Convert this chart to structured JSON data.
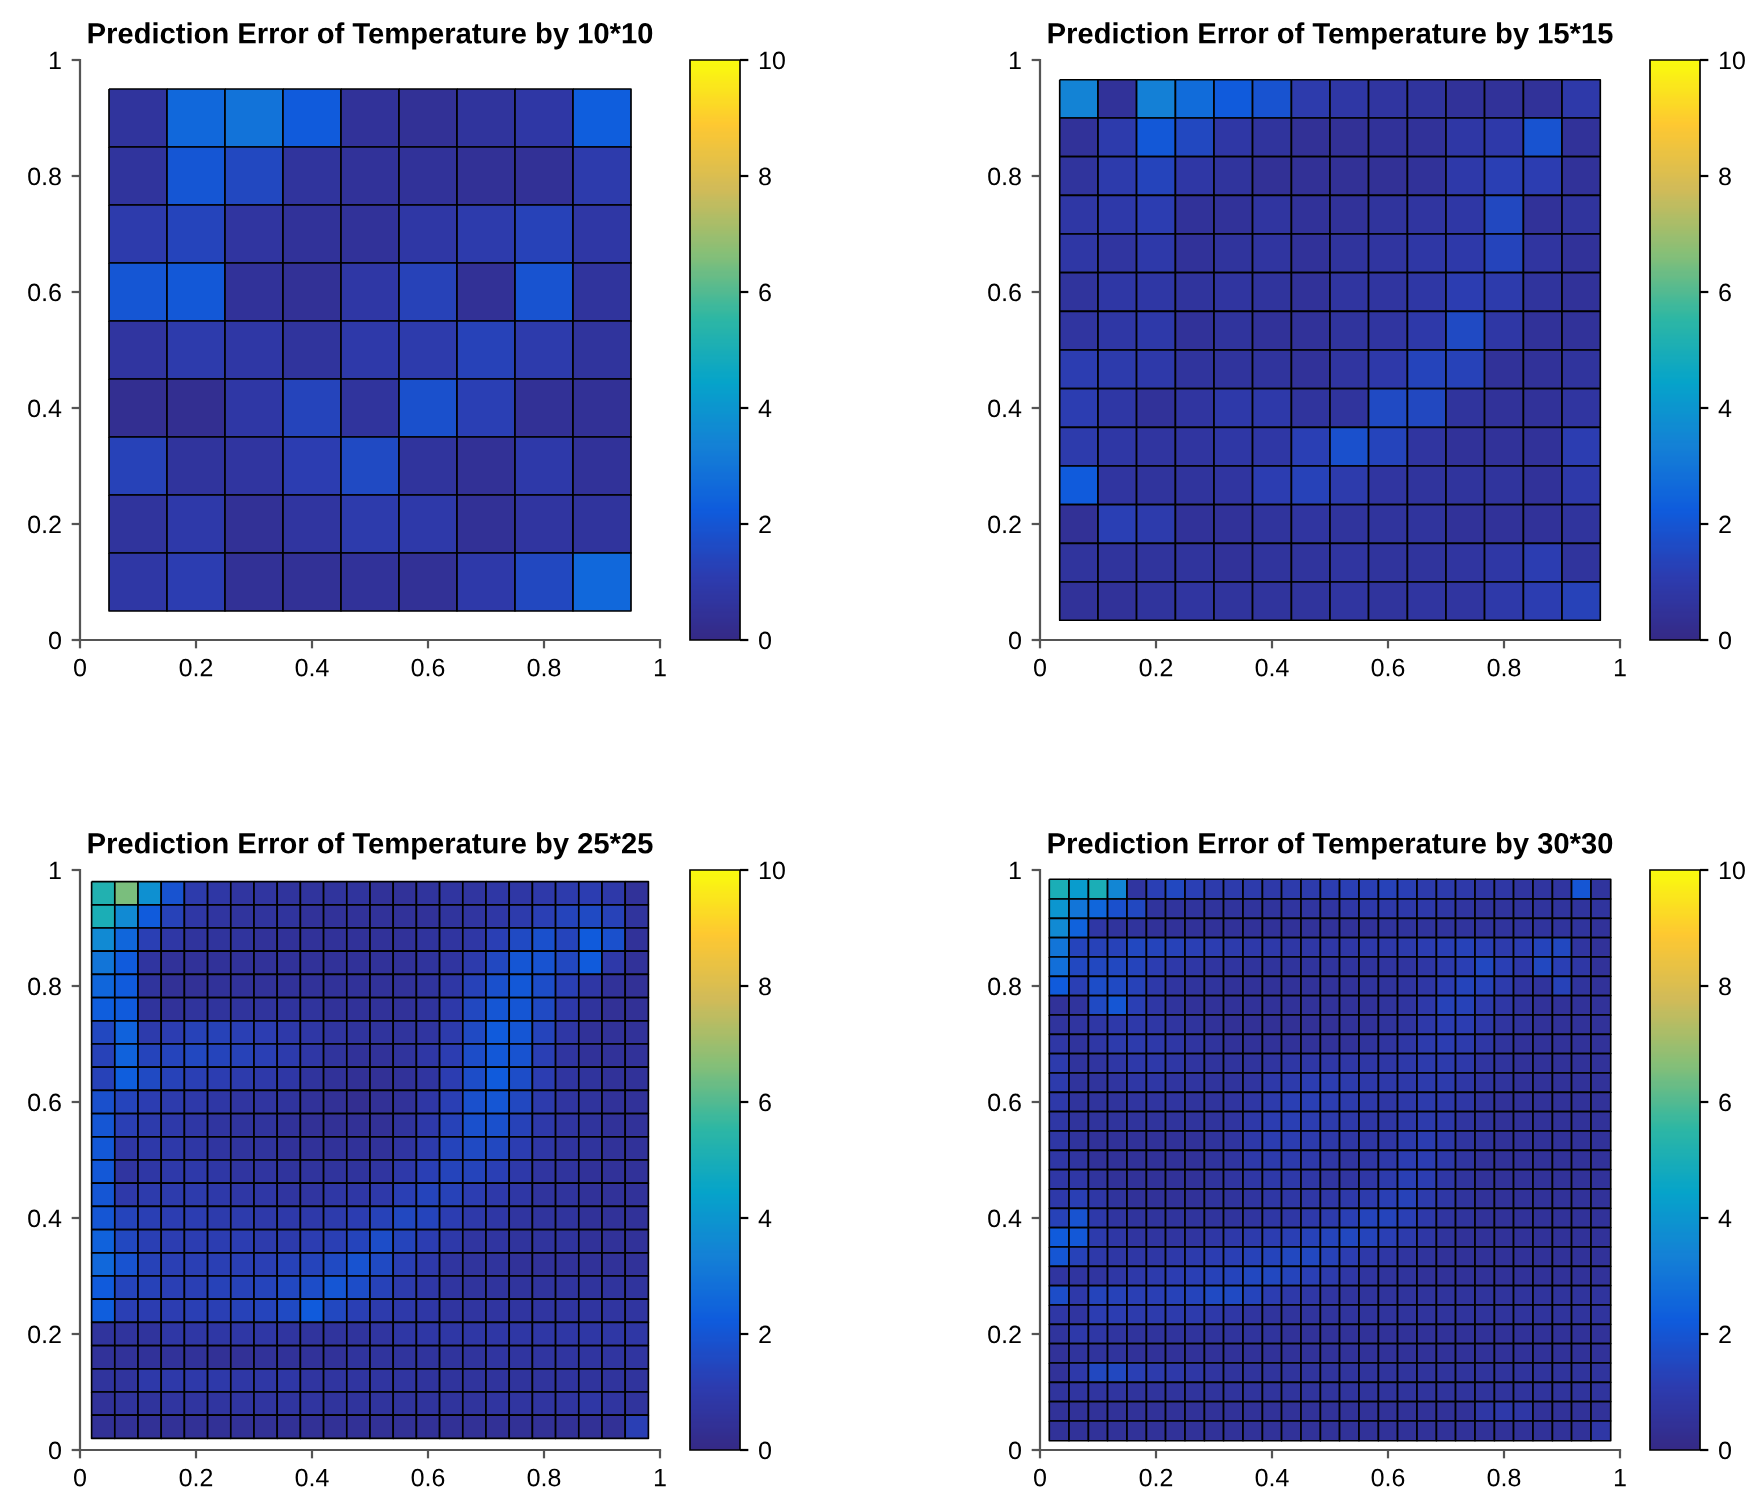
{
  "chart_data": [
    {
      "type": "heatmap",
      "title": "Prediction Error of Temperature by 10*10",
      "x": [
        0.1,
        0.2,
        0.3,
        0.4,
        0.5,
        0.6,
        0.7,
        0.8,
        0.9
      ],
      "y": [
        0.9,
        0.8,
        0.7,
        0.6,
        0.5,
        0.4,
        0.3,
        0.2,
        0.1
      ],
      "xlim": [
        0,
        1
      ],
      "ylim": [
        0,
        1
      ],
      "xticks": [
        0,
        0.2,
        0.4,
        0.6,
        0.8,
        1
      ],
      "yticks": [
        0,
        0.2,
        0.4,
        0.6,
        0.8,
        1
      ],
      "clim": [
        0,
        10
      ],
      "cticks": [
        0,
        2,
        4,
        6,
        8,
        10
      ],
      "cells": [
        [
          0.6,
          2.6,
          2.9,
          2.2,
          0.5,
          0.4,
          0.6,
          0.8,
          2.3
        ],
        [
          0.6,
          2.0,
          1.5,
          0.6,
          0.5,
          0.5,
          0.4,
          0.4,
          1.0
        ],
        [
          1.0,
          1.4,
          0.7,
          0.5,
          0.5,
          0.8,
          1.0,
          1.3,
          0.8
        ],
        [
          2.0,
          2.1,
          0.5,
          0.4,
          0.8,
          1.3,
          0.4,
          1.9,
          0.6
        ],
        [
          0.7,
          1.0,
          0.8,
          0.6,
          0.9,
          1.0,
          1.3,
          1.0,
          0.6
        ],
        [
          0.3,
          0.3,
          0.8,
          1.4,
          0.6,
          1.8,
          1.2,
          0.4,
          0.4
        ],
        [
          1.3,
          0.6,
          0.7,
          1.1,
          1.6,
          0.6,
          0.4,
          0.9,
          0.5
        ],
        [
          0.6,
          0.9,
          0.4,
          0.7,
          1.0,
          0.9,
          0.4,
          0.7,
          0.6
        ],
        [
          0.8,
          1.1,
          0.4,
          0.4,
          0.5,
          0.4,
          0.9,
          1.5,
          2.6
        ]
      ]
    },
    {
      "type": "heatmap",
      "title": "Prediction Error of Temperature by 15*15",
      "x": [
        0.067,
        0.133,
        0.2,
        0.267,
        0.333,
        0.4,
        0.467,
        0.533,
        0.6,
        0.667,
        0.733,
        0.8,
        0.867,
        0.933
      ],
      "y": [
        0.933,
        0.867,
        0.8,
        0.733,
        0.667,
        0.6,
        0.533,
        0.467,
        0.4,
        0.333,
        0.267,
        0.2,
        0.133,
        0.067
      ],
      "xlim": [
        0,
        1
      ],
      "ylim": [
        0,
        1
      ],
      "xticks": [
        0,
        0.2,
        0.4,
        0.6,
        0.8,
        1
      ],
      "yticks": [
        0,
        0.2,
        0.4,
        0.6,
        0.8,
        1
      ],
      "clim": [
        0,
        10
      ],
      "cticks": [
        0,
        2,
        4,
        6,
        8,
        10
      ],
      "cells": [
        [
          3.4,
          0.5,
          3.3,
          2.7,
          2.2,
          1.9,
          1.0,
          0.8,
          0.7,
          0.6,
          0.5,
          0.5,
          0.5,
          0.9
        ],
        [
          0.5,
          1.0,
          2.1,
          1.5,
          0.8,
          0.6,
          0.4,
          0.4,
          0.5,
          0.5,
          0.8,
          0.9,
          1.9,
          0.5
        ],
        [
          0.6,
          1.0,
          1.4,
          0.8,
          0.6,
          0.4,
          0.4,
          0.4,
          0.4,
          0.5,
          0.9,
          1.2,
          1.1,
          0.5
        ],
        [
          0.8,
          0.9,
          1.1,
          0.5,
          0.5,
          0.7,
          0.5,
          0.5,
          0.6,
          0.7,
          0.8,
          1.5,
          0.5,
          0.6
        ],
        [
          0.8,
          0.7,
          0.9,
          0.5,
          0.6,
          0.7,
          0.5,
          0.6,
          0.7,
          0.8,
          0.9,
          1.4,
          0.7,
          0.5
        ],
        [
          0.6,
          0.8,
          0.8,
          0.6,
          0.7,
          0.6,
          0.5,
          0.7,
          0.7,
          0.8,
          1.1,
          1.0,
          0.6,
          0.5
        ],
        [
          0.7,
          0.8,
          0.9,
          0.5,
          0.6,
          0.5,
          0.5,
          0.6,
          0.7,
          0.9,
          1.6,
          0.8,
          0.5,
          0.5
        ],
        [
          1.1,
          1.0,
          0.9,
          0.6,
          0.6,
          0.6,
          0.5,
          0.7,
          0.9,
          1.4,
          1.3,
          0.5,
          0.5,
          0.6
        ],
        [
          1.1,
          0.8,
          0.5,
          0.7,
          0.9,
          0.9,
          0.6,
          0.6,
          1.6,
          1.5,
          0.6,
          0.5,
          0.5,
          0.7
        ],
        [
          1.0,
          0.8,
          0.7,
          0.7,
          0.8,
          0.8,
          1.2,
          1.8,
          1.4,
          0.7,
          0.5,
          0.5,
          0.5,
          1.1
        ],
        [
          2.2,
          0.7,
          0.6,
          0.6,
          0.7,
          1.1,
          1.3,
          1.0,
          0.7,
          0.6,
          0.6,
          0.6,
          0.5,
          0.9
        ],
        [
          0.4,
          1.2,
          1.0,
          0.5,
          0.5,
          0.6,
          0.7,
          0.6,
          0.6,
          0.6,
          0.5,
          0.5,
          0.5,
          0.6
        ],
        [
          0.6,
          0.6,
          0.6,
          0.6,
          0.5,
          0.6,
          0.6,
          0.7,
          0.6,
          0.6,
          0.7,
          0.8,
          1.1,
          0.6
        ],
        [
          0.5,
          0.5,
          0.6,
          0.7,
          0.6,
          0.6,
          0.6,
          0.7,
          0.6,
          0.7,
          0.7,
          0.9,
          1.1,
          1.3
        ]
      ]
    },
    {
      "type": "heatmap",
      "title": "Prediction Error of Temperature by 25*25",
      "x": [
        0.04,
        0.08,
        0.12,
        0.16,
        0.2,
        0.24,
        0.28,
        0.32,
        0.36,
        0.4,
        0.44,
        0.48,
        0.52,
        0.56,
        0.6,
        0.64,
        0.68,
        0.72,
        0.76,
        0.8,
        0.84,
        0.88,
        0.92,
        0.96
      ],
      "y": [
        0.96,
        0.92,
        0.88,
        0.84,
        0.8,
        0.76,
        0.72,
        0.68,
        0.64,
        0.6,
        0.56,
        0.52,
        0.48,
        0.44,
        0.4,
        0.36,
        0.32,
        0.28,
        0.24,
        0.2,
        0.16,
        0.12,
        0.08,
        0.04
      ],
      "xlim": [
        0,
        1
      ],
      "ylim": [
        0,
        1
      ],
      "xticks": [
        0,
        0.2,
        0.4,
        0.6,
        0.8,
        1
      ],
      "yticks": [
        0,
        0.2,
        0.4,
        0.6,
        0.8,
        1
      ],
      "clim": [
        0,
        10
      ],
      "cticks": [
        0,
        2,
        4,
        6,
        8,
        10
      ],
      "cells": [
        [
          5.2,
          6.5,
          3.8,
          1.9,
          1.0,
          0.8,
          0.7,
          0.7,
          0.6,
          0.6,
          0.6,
          0.6,
          0.5,
          0.5,
          0.6,
          0.7,
          0.7,
          0.8,
          0.8,
          0.9,
          1.0,
          1.1,
          0.9,
          0.5
        ],
        [
          5.0,
          3.6,
          2.2,
          1.3,
          0.8,
          0.7,
          0.6,
          0.6,
          0.6,
          0.5,
          0.5,
          0.5,
          0.5,
          0.5,
          0.5,
          0.6,
          0.7,
          0.8,
          1.0,
          1.2,
          1.4,
          1.6,
          1.3,
          0.6
        ],
        [
          3.6,
          2.5,
          1.2,
          0.8,
          0.6,
          0.6,
          0.6,
          0.5,
          0.5,
          0.5,
          0.5,
          0.5,
          0.5,
          0.5,
          0.6,
          0.7,
          0.8,
          1.2,
          1.6,
          1.8,
          1.4,
          2.2,
          1.8,
          0.5
        ],
        [
          3.0,
          2.2,
          0.7,
          0.5,
          0.5,
          0.5,
          0.5,
          0.5,
          0.5,
          0.5,
          0.5,
          0.5,
          0.5,
          0.5,
          0.6,
          0.7,
          1.0,
          1.5,
          2.0,
          1.9,
          1.5,
          2.2,
          0.9,
          0.5
        ],
        [
          2.5,
          2.2,
          0.6,
          0.4,
          0.4,
          0.5,
          0.5,
          0.5,
          0.5,
          0.5,
          0.5,
          0.5,
          0.5,
          0.5,
          0.6,
          0.8,
          1.3,
          1.8,
          2.1,
          1.7,
          1.2,
          0.8,
          0.5,
          0.4
        ],
        [
          2.3,
          2.2,
          0.6,
          0.5,
          0.6,
          0.6,
          0.6,
          0.6,
          0.6,
          0.6,
          0.5,
          0.5,
          0.5,
          0.5,
          0.6,
          0.9,
          1.5,
          2.0,
          2.0,
          1.6,
          0.9,
          0.6,
          0.4,
          0.4
        ],
        [
          1.5,
          2.4,
          1.0,
          1.1,
          1.3,
          1.3,
          1.2,
          1.1,
          0.9,
          0.8,
          0.7,
          0.6,
          0.6,
          0.6,
          0.7,
          1.0,
          1.6,
          2.2,
          2.0,
          1.4,
          0.8,
          0.5,
          0.5,
          0.5
        ],
        [
          1.3,
          2.4,
          1.4,
          1.4,
          1.5,
          1.4,
          1.3,
          1.2,
          1.0,
          0.8,
          0.6,
          0.5,
          0.5,
          0.6,
          0.8,
          1.1,
          1.7,
          2.1,
          1.9,
          1.2,
          0.7,
          0.5,
          0.5,
          0.5
        ],
        [
          1.3,
          2.3,
          1.6,
          1.3,
          1.2,
          1.1,
          1.0,
          0.9,
          0.8,
          0.6,
          0.5,
          0.4,
          0.4,
          0.5,
          0.7,
          1.1,
          1.7,
          2.2,
          1.7,
          1.1,
          0.7,
          0.6,
          0.5,
          0.5
        ],
        [
          1.8,
          1.4,
          1.1,
          1.0,
          0.9,
          0.8,
          0.7,
          0.7,
          0.6,
          0.5,
          0.4,
          0.3,
          0.4,
          0.5,
          0.8,
          1.2,
          1.8,
          2.0,
          1.5,
          1.0,
          0.7,
          0.6,
          0.5,
          0.5
        ],
        [
          2.0,
          1.2,
          1.0,
          0.9,
          0.8,
          0.7,
          0.6,
          0.6,
          0.5,
          0.4,
          0.4,
          0.4,
          0.4,
          0.6,
          0.9,
          1.3,
          1.8,
          1.8,
          1.3,
          0.9,
          0.7,
          0.6,
          0.5,
          0.5
        ],
        [
          2.1,
          0.8,
          0.9,
          0.9,
          0.8,
          0.7,
          0.6,
          0.6,
          0.5,
          0.5,
          0.5,
          0.5,
          0.5,
          0.7,
          1.0,
          1.4,
          1.6,
          1.5,
          1.1,
          0.8,
          0.6,
          0.6,
          0.5,
          0.5
        ],
        [
          2.1,
          0.7,
          0.8,
          0.9,
          0.9,
          0.8,
          0.7,
          0.7,
          0.6,
          0.6,
          0.6,
          0.6,
          0.7,
          0.9,
          1.2,
          1.4,
          1.4,
          1.2,
          0.9,
          0.7,
          0.6,
          0.5,
          0.5,
          0.5
        ],
        [
          2.0,
          0.9,
          1.0,
          1.0,
          1.0,
          0.9,
          0.8,
          0.8,
          0.7,
          0.7,
          0.8,
          0.8,
          0.9,
          1.2,
          1.4,
          1.3,
          1.1,
          0.9,
          0.8,
          0.6,
          0.6,
          0.5,
          0.5,
          0.5
        ],
        [
          2.0,
          1.4,
          1.2,
          1.1,
          1.1,
          1.0,
          1.0,
          0.9,
          0.9,
          0.9,
          1.0,
          1.1,
          1.3,
          1.5,
          1.4,
          1.1,
          0.9,
          0.8,
          0.7,
          0.6,
          0.6,
          0.5,
          0.5,
          0.5
        ],
        [
          2.4,
          1.5,
          1.2,
          1.1,
          1.1,
          1.1,
          1.1,
          1.0,
          1.0,
          1.1,
          1.2,
          1.4,
          1.7,
          1.4,
          1.1,
          0.9,
          0.7,
          0.7,
          0.6,
          0.6,
          0.6,
          0.5,
          0.5,
          0.5
        ],
        [
          2.6,
          1.9,
          1.3,
          1.2,
          1.2,
          1.2,
          1.2,
          1.2,
          1.3,
          1.4,
          1.6,
          1.9,
          1.6,
          1.2,
          0.9,
          0.7,
          0.6,
          0.6,
          0.5,
          0.5,
          0.5,
          0.5,
          0.5,
          0.5
        ],
        [
          2.2,
          1.4,
          1.3,
          1.2,
          1.2,
          1.3,
          1.3,
          1.4,
          1.5,
          1.7,
          2.0,
          1.7,
          1.3,
          1.0,
          0.8,
          0.7,
          0.6,
          0.6,
          0.6,
          0.6,
          0.6,
          0.6,
          0.6,
          0.6
        ],
        [
          2.3,
          1.2,
          1.1,
          1.1,
          1.2,
          1.2,
          1.3,
          1.4,
          1.6,
          2.2,
          1.5,
          1.2,
          1.0,
          0.9,
          0.8,
          0.7,
          0.7,
          0.7,
          0.7,
          0.7,
          0.7,
          0.7,
          0.7,
          0.7
        ],
        [
          0.6,
          0.6,
          0.6,
          0.8,
          0.8,
          0.8,
          0.8,
          0.8,
          0.7,
          0.6,
          0.6,
          0.6,
          0.7,
          0.8,
          0.8,
          0.8,
          0.8,
          0.8,
          0.8,
          0.8,
          0.8,
          0.8,
          0.8,
          0.8
        ],
        [
          0.5,
          0.5,
          0.5,
          0.5,
          0.5,
          0.4,
          0.4,
          0.5,
          0.5,
          0.5,
          0.5,
          0.6,
          0.6,
          0.6,
          0.6,
          0.6,
          0.6,
          0.7,
          0.7,
          0.7,
          0.7,
          0.7,
          0.7,
          0.7
        ],
        [
          0.6,
          0.6,
          0.9,
          0.9,
          0.9,
          0.9,
          0.8,
          0.8,
          0.8,
          0.7,
          0.7,
          0.7,
          0.7,
          0.7,
          0.6,
          0.6,
          0.6,
          0.6,
          0.6,
          0.6,
          0.6,
          0.6,
          0.6,
          0.6
        ],
        [
          0.5,
          0.6,
          0.6,
          0.7,
          0.7,
          0.7,
          0.7,
          0.7,
          0.7,
          0.7,
          0.6,
          0.6,
          0.6,
          0.6,
          0.6,
          0.6,
          0.6,
          0.7,
          0.7,
          0.7,
          0.7,
          0.8,
          0.7,
          0.6
        ],
        [
          0.4,
          0.4,
          0.4,
          0.4,
          0.4,
          0.4,
          0.4,
          0.4,
          0.4,
          0.4,
          0.4,
          0.4,
          0.4,
          0.4,
          0.4,
          0.4,
          0.4,
          0.4,
          0.4,
          0.4,
          0.4,
          0.4,
          0.4,
          1.2
        ]
      ]
    },
    {
      "type": "heatmap",
      "title": "Prediction Error of Temperature by 30*30",
      "x": [
        0.033,
        0.067,
        0.1,
        0.133,
        0.167,
        0.2,
        0.233,
        0.267,
        0.3,
        0.333,
        0.367,
        0.4,
        0.433,
        0.467,
        0.5,
        0.533,
        0.567,
        0.6,
        0.633,
        0.667,
        0.7,
        0.733,
        0.767,
        0.8,
        0.833,
        0.867,
        0.9,
        0.933,
        0.967
      ],
      "y": [
        0.967,
        0.933,
        0.9,
        0.867,
        0.833,
        0.8,
        0.767,
        0.733,
        0.7,
        0.667,
        0.633,
        0.6,
        0.567,
        0.533,
        0.5,
        0.467,
        0.433,
        0.4,
        0.367,
        0.333,
        0.3,
        0.267,
        0.233,
        0.2,
        0.167,
        0.133,
        0.1,
        0.067,
        0.033
      ],
      "xlim": [
        0,
        1
      ],
      "ylim": [
        0,
        1
      ],
      "xticks": [
        0,
        0.2,
        0.4,
        0.6,
        0.8,
        1
      ],
      "yticks": [
        0,
        0.2,
        0.4,
        0.6,
        0.8,
        1
      ],
      "clim": [
        0,
        10
      ],
      "cticks": [
        0,
        2,
        4,
        6,
        8,
        10
      ],
      "cells": [
        [
          5.0,
          4.2,
          5.0,
          3.5,
          0.7,
          1.2,
          1.5,
          1.2,
          1.0,
          1.0,
          1.0,
          0.9,
          1.0,
          1.0,
          1.1,
          1.2,
          1.2,
          1.3,
          1.2,
          1.0,
          1.0,
          0.9,
          0.8,
          0.8,
          0.7,
          0.7,
          0.7,
          2.0,
          0.6
        ],
        [
          4.0,
          3.0,
          2.5,
          1.8,
          1.5,
          0.6,
          0.6,
          0.6,
          0.6,
          0.6,
          0.6,
          0.6,
          0.7,
          0.7,
          0.7,
          0.8,
          0.9,
          0.9,
          0.9,
          0.9,
          0.8,
          0.7,
          0.6,
          0.6,
          0.6,
          0.6,
          0.6,
          0.6,
          0.6
        ],
        [
          3.6,
          2.4,
          0.8,
          0.6,
          0.6,
          0.5,
          0.5,
          0.5,
          0.5,
          0.5,
          0.5,
          0.5,
          0.5,
          0.5,
          0.5,
          0.5,
          0.5,
          0.6,
          0.6,
          0.6,
          0.6,
          0.6,
          0.6,
          0.6,
          0.6,
          0.6,
          0.6,
          0.6,
          0.5
        ],
        [
          3.0,
          1.4,
          1.3,
          1.3,
          1.5,
          1.4,
          1.3,
          1.2,
          1.1,
          1.0,
          0.9,
          0.9,
          0.8,
          0.8,
          0.8,
          0.8,
          0.9,
          0.9,
          1.0,
          1.1,
          1.2,
          1.3,
          1.2,
          1.0,
          1.1,
          1.4,
          1.5,
          0.7,
          0.5
        ],
        [
          2.8,
          1.5,
          1.5,
          1.5,
          1.4,
          1.1,
          0.9,
          0.8,
          0.7,
          0.7,
          0.6,
          0.6,
          0.6,
          0.6,
          0.6,
          0.6,
          0.6,
          0.7,
          0.7,
          0.8,
          1.0,
          1.2,
          1.5,
          1.2,
          0.9,
          1.5,
          1.2,
          0.8,
          0.5
        ],
        [
          2.2,
          1.2,
          1.7,
          1.6,
          1.3,
          0.9,
          0.7,
          0.6,
          0.6,
          0.5,
          0.5,
          0.5,
          0.5,
          0.5,
          0.5,
          0.5,
          0.6,
          0.6,
          0.7,
          0.8,
          1.1,
          1.4,
          1.3,
          1.0,
          0.7,
          0.6,
          1.3,
          0.6,
          0.5
        ],
        [
          0.5,
          0.6,
          1.6,
          2.0,
          1.2,
          0.8,
          0.6,
          0.5,
          0.5,
          0.5,
          0.5,
          0.5,
          0.5,
          0.5,
          0.5,
          0.5,
          0.5,
          0.6,
          0.7,
          0.9,
          1.3,
          1.3,
          1.0,
          0.8,
          0.6,
          0.5,
          0.5,
          0.5,
          0.5
        ],
        [
          0.6,
          0.7,
          0.8,
          0.9,
          0.9,
          0.8,
          0.7,
          0.6,
          0.5,
          0.4,
          0.4,
          0.4,
          0.4,
          0.4,
          0.4,
          0.5,
          0.5,
          0.6,
          0.7,
          0.9,
          1.1,
          1.1,
          0.9,
          0.7,
          0.6,
          0.5,
          0.5,
          0.5,
          0.5
        ],
        [
          0.8,
          0.6,
          0.8,
          1.0,
          1.0,
          0.9,
          0.8,
          0.7,
          0.6,
          0.5,
          0.5,
          0.5,
          0.5,
          0.5,
          0.5,
          0.5,
          0.6,
          0.7,
          0.8,
          1.0,
          1.1,
          1.0,
          0.8,
          0.6,
          0.5,
          0.5,
          0.5,
          0.5,
          0.5
        ],
        [
          1.0,
          0.6,
          0.7,
          0.8,
          0.9,
          0.9,
          0.8,
          0.7,
          0.6,
          0.6,
          0.6,
          0.7,
          0.8,
          0.8,
          0.8,
          0.8,
          0.8,
          0.8,
          0.9,
          1.0,
          1.0,
          0.9,
          0.7,
          0.6,
          0.5,
          0.5,
          0.5,
          0.5,
          0.5
        ],
        [
          1.0,
          0.6,
          0.6,
          0.7,
          0.8,
          0.8,
          0.7,
          0.7,
          0.6,
          0.6,
          0.7,
          0.9,
          1.0,
          1.1,
          1.1,
          1.0,
          0.9,
          0.9,
          0.9,
          1.0,
          1.0,
          0.8,
          0.7,
          0.6,
          0.5,
          0.5,
          0.5,
          0.5,
          0.5
        ],
        [
          0.9,
          0.6,
          0.6,
          0.6,
          0.7,
          0.7,
          0.7,
          0.6,
          0.6,
          0.7,
          0.8,
          1.0,
          1.2,
          1.2,
          1.1,
          1.0,
          0.9,
          0.8,
          0.9,
          1.0,
          0.9,
          0.8,
          0.6,
          0.5,
          0.5,
          0.5,
          0.5,
          0.5,
          0.5
        ],
        [
          0.8,
          0.6,
          0.6,
          0.6,
          0.6,
          0.6,
          0.6,
          0.6,
          0.6,
          0.7,
          0.9,
          1.1,
          1.2,
          1.1,
          1.0,
          0.9,
          0.8,
          0.8,
          0.9,
          1.0,
          0.9,
          0.7,
          0.6,
          0.5,
          0.5,
          0.5,
          0.5,
          0.5,
          0.5
        ],
        [
          0.8,
          0.6,
          0.5,
          0.5,
          0.5,
          0.5,
          0.5,
          0.5,
          0.6,
          0.7,
          0.9,
          1.1,
          1.1,
          1.0,
          0.9,
          0.8,
          0.8,
          0.8,
          1.0,
          1.1,
          0.9,
          0.7,
          0.6,
          0.5,
          0.5,
          0.5,
          0.5,
          0.5,
          0.5
        ],
        [
          0.8,
          0.7,
          0.5,
          0.5,
          0.5,
          0.5,
          0.5,
          0.5,
          0.6,
          0.7,
          0.9,
          1.0,
          1.0,
          0.9,
          0.8,
          0.7,
          0.8,
          0.9,
          1.1,
          1.1,
          0.9,
          0.7,
          0.5,
          0.5,
          0.5,
          0.5,
          0.5,
          0.5,
          0.5
        ],
        [
          0.8,
          0.8,
          0.6,
          0.5,
          0.5,
          0.5,
          0.5,
          0.5,
          0.6,
          0.7,
          0.8,
          0.9,
          0.9,
          0.8,
          0.7,
          0.7,
          0.8,
          1.0,
          1.2,
          1.1,
          0.8,
          0.6,
          0.5,
          0.5,
          0.5,
          0.5,
          0.5,
          0.5,
          0.5
        ],
        [
          0.9,
          1.2,
          0.8,
          0.6,
          0.5,
          0.5,
          0.5,
          0.5,
          0.6,
          0.6,
          0.7,
          0.8,
          0.8,
          0.8,
          0.8,
          0.9,
          1.0,
          1.2,
          1.3,
          1.0,
          0.8,
          0.6,
          0.5,
          0.5,
          0.5,
          0.5,
          0.5,
          0.5,
          0.5
        ],
        [
          1.3,
          1.9,
          0.9,
          0.7,
          0.6,
          0.6,
          0.6,
          0.6,
          0.6,
          0.6,
          0.7,
          0.8,
          0.8,
          0.9,
          1.0,
          1.2,
          1.4,
          1.4,
          1.2,
          0.9,
          0.7,
          0.6,
          0.5,
          0.5,
          0.5,
          0.5,
          0.5,
          0.5,
          0.5
        ],
        [
          2.2,
          2.1,
          1.0,
          0.8,
          0.7,
          0.7,
          0.7,
          0.7,
          0.8,
          0.9,
          1.0,
          1.1,
          1.2,
          1.3,
          1.4,
          1.5,
          1.4,
          1.2,
          1.0,
          0.8,
          0.6,
          0.5,
          0.5,
          0.5,
          0.5,
          0.5,
          0.5,
          0.5,
          0.5
        ],
        [
          2.0,
          1.3,
          0.9,
          0.8,
          0.8,
          0.8,
          0.9,
          1.0,
          1.1,
          1.2,
          1.3,
          1.4,
          1.5,
          1.5,
          1.3,
          1.1,
          0.9,
          0.8,
          0.7,
          0.6,
          0.5,
          0.5,
          0.5,
          0.5,
          0.5,
          0.5,
          0.5,
          0.5,
          0.5
        ],
        [
          0.7,
          0.7,
          0.7,
          0.8,
          0.9,
          1.0,
          1.1,
          1.2,
          1.3,
          1.4,
          1.5,
          1.5,
          1.4,
          1.2,
          1.0,
          0.8,
          0.7,
          0.6,
          0.6,
          0.5,
          0.5,
          0.5,
          0.5,
          0.5,
          0.5,
          0.5,
          0.5,
          0.5,
          0.5
        ],
        [
          1.7,
          0.9,
          1.4,
          1.3,
          1.2,
          1.2,
          1.3,
          1.4,
          1.6,
          1.6,
          1.4,
          1.1,
          0.9,
          0.8,
          0.7,
          0.6,
          0.6,
          0.6,
          0.6,
          0.6,
          0.6,
          0.6,
          0.6,
          0.6,
          0.6,
          0.6,
          0.6,
          0.6,
          0.6
        ],
        [
          0.8,
          0.7,
          1.1,
          1.1,
          1.0,
          1.0,
          1.0,
          1.0,
          0.9,
          0.8,
          0.7,
          0.6,
          0.6,
          0.6,
          0.6,
          0.6,
          0.6,
          0.6,
          0.6,
          0.6,
          0.6,
          0.6,
          0.6,
          0.6,
          0.6,
          0.6,
          0.6,
          0.6,
          0.6
        ],
        [
          0.6,
          0.9,
          0.8,
          0.7,
          0.6,
          0.6,
          0.6,
          0.6,
          0.6,
          0.6,
          0.6,
          0.6,
          0.5,
          0.5,
          0.5,
          0.5,
          0.5,
          0.5,
          0.5,
          0.5,
          0.5,
          0.5,
          0.5,
          0.5,
          0.5,
          0.5,
          0.5,
          0.5,
          0.5
        ],
        [
          0.5,
          0.6,
          0.6,
          0.6,
          0.5,
          0.5,
          0.5,
          0.5,
          0.5,
          0.5,
          0.5,
          0.5,
          0.5,
          0.5,
          0.5,
          0.5,
          0.5,
          0.5,
          0.5,
          0.5,
          0.5,
          0.5,
          0.5,
          0.5,
          0.5,
          0.5,
          0.5,
          0.5,
          0.5
        ],
        [
          0.5,
          0.9,
          1.5,
          1.5,
          1.2,
          1.0,
          0.9,
          0.8,
          0.7,
          0.6,
          0.6,
          0.6,
          0.6,
          0.6,
          0.6,
          0.6,
          0.6,
          0.6,
          0.6,
          0.6,
          0.6,
          0.6,
          0.6,
          0.6,
          0.6,
          0.6,
          0.6,
          0.6,
          0.6
        ],
        [
          0.6,
          0.7,
          0.7,
          0.7,
          0.6,
          0.6,
          0.6,
          0.6,
          0.6,
          0.6,
          0.6,
          0.6,
          0.6,
          0.6,
          0.6,
          0.6,
          0.6,
          0.6,
          0.6,
          0.6,
          0.6,
          0.6,
          0.6,
          0.6,
          0.6,
          0.6,
          0.6,
          0.6,
          0.6
        ],
        [
          0.5,
          0.5,
          0.5,
          0.5,
          0.5,
          0.5,
          0.5,
          0.5,
          0.5,
          0.5,
          0.5,
          0.5,
          0.5,
          0.5,
          0.5,
          0.5,
          0.5,
          0.5,
          0.5,
          0.5,
          0.5,
          0.5,
          0.8,
          0.9,
          0.8,
          0.5,
          0.5,
          0.5,
          0.5
        ],
        [
          0.5,
          0.5,
          0.5,
          0.5,
          0.5,
          0.5,
          0.5,
          0.5,
          0.5,
          0.5,
          0.5,
          0.5,
          0.5,
          0.5,
          0.5,
          0.5,
          0.5,
          0.5,
          0.5,
          0.5,
          0.5,
          0.5,
          0.5,
          0.5,
          0.5,
          0.5,
          0.5,
          0.5,
          0.8
        ]
      ]
    }
  ]
}
